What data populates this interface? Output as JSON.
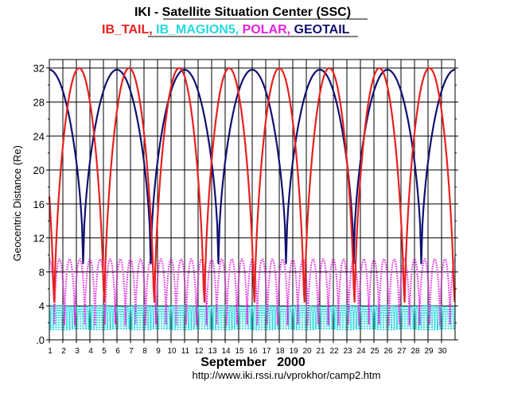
{
  "chart_data": {
    "type": "line",
    "title": "IKI - Satellite Situation Center (SSC)",
    "subtitle_parts": [
      {
        "text": "IB_TAIL,",
        "color": "#e8201e"
      },
      {
        "text": "IB_MAGION5,",
        "color": "#22d8e0"
      },
      {
        "text": "POLAR,",
        "color": "#e820e0"
      },
      {
        "text": "GEOTAIL",
        "color": "#101070"
      }
    ],
    "ylabel": "Geocentric Distance (Re)",
    "xlabel": "September   2000",
    "url": "http://www.iki.rssi.ru/vprokhor/camp2.htm",
    "xlim": [
      1,
      31
    ],
    "ylim": [
      0,
      33
    ],
    "y_ticks": [
      0,
      4,
      8,
      12,
      16,
      20,
      24,
      28,
      32
    ],
    "y_tick_labels": [
      ".0",
      "4",
      "8",
      "12",
      "16",
      "20",
      "24",
      "28",
      "32"
    ],
    "x_ticks": [
      1,
      2,
      3,
      4,
      5,
      6,
      7,
      8,
      9,
      10,
      11,
      12,
      13,
      14,
      15,
      16,
      17,
      18,
      19,
      20,
      21,
      22,
      23,
      24,
      25,
      26,
      27,
      28,
      29,
      30
    ],
    "x_tick_labels": [
      "1",
      "2",
      "3",
      "4",
      "5",
      "6",
      "7",
      "8",
      "9",
      "10",
      "11",
      "12",
      "13",
      "14",
      "15",
      "16",
      "17",
      "18",
      "19",
      "20",
      "21",
      "22",
      "23",
      "24",
      "25",
      "26",
      "27",
      "28",
      "29",
      "30"
    ],
    "grid": true,
    "series": [
      {
        "name": "IB_TAIL",
        "color": "#e8201e",
        "style": "solid",
        "period_days": 3.7,
        "min": 1.2,
        "max": 32.0,
        "apogee_days": [
          3.2,
          6.9,
          10.6,
          14.3,
          18.0,
          21.7,
          25.5,
          29.2
        ],
        "perigee_days": [
          1.3,
          5.05,
          8.75,
          12.45,
          16.15,
          19.85,
          23.6,
          27.35,
          31.0
        ]
      },
      {
        "name": "GEOTAIL",
        "color": "#101070",
        "style": "solid",
        "period_days": 5.0,
        "min": 9.0,
        "max": 31.8,
        "apogee_days": [
          1.0,
          6.1,
          11.2,
          16.3,
          21.4,
          26.5
        ],
        "perigee_days": [
          3.5,
          8.6,
          13.7,
          18.8,
          23.9,
          29.0
        ]
      },
      {
        "name": "POLAR",
        "color": "#e820e0",
        "style": "dotted",
        "period_days": 0.75,
        "min": 1.8,
        "max": 9.5
      },
      {
        "name": "IB_MAGION5",
        "color": "#22d8e0",
        "style": "dotted",
        "period_days": 0.2,
        "min": 1.2,
        "max": 4.0
      }
    ]
  }
}
